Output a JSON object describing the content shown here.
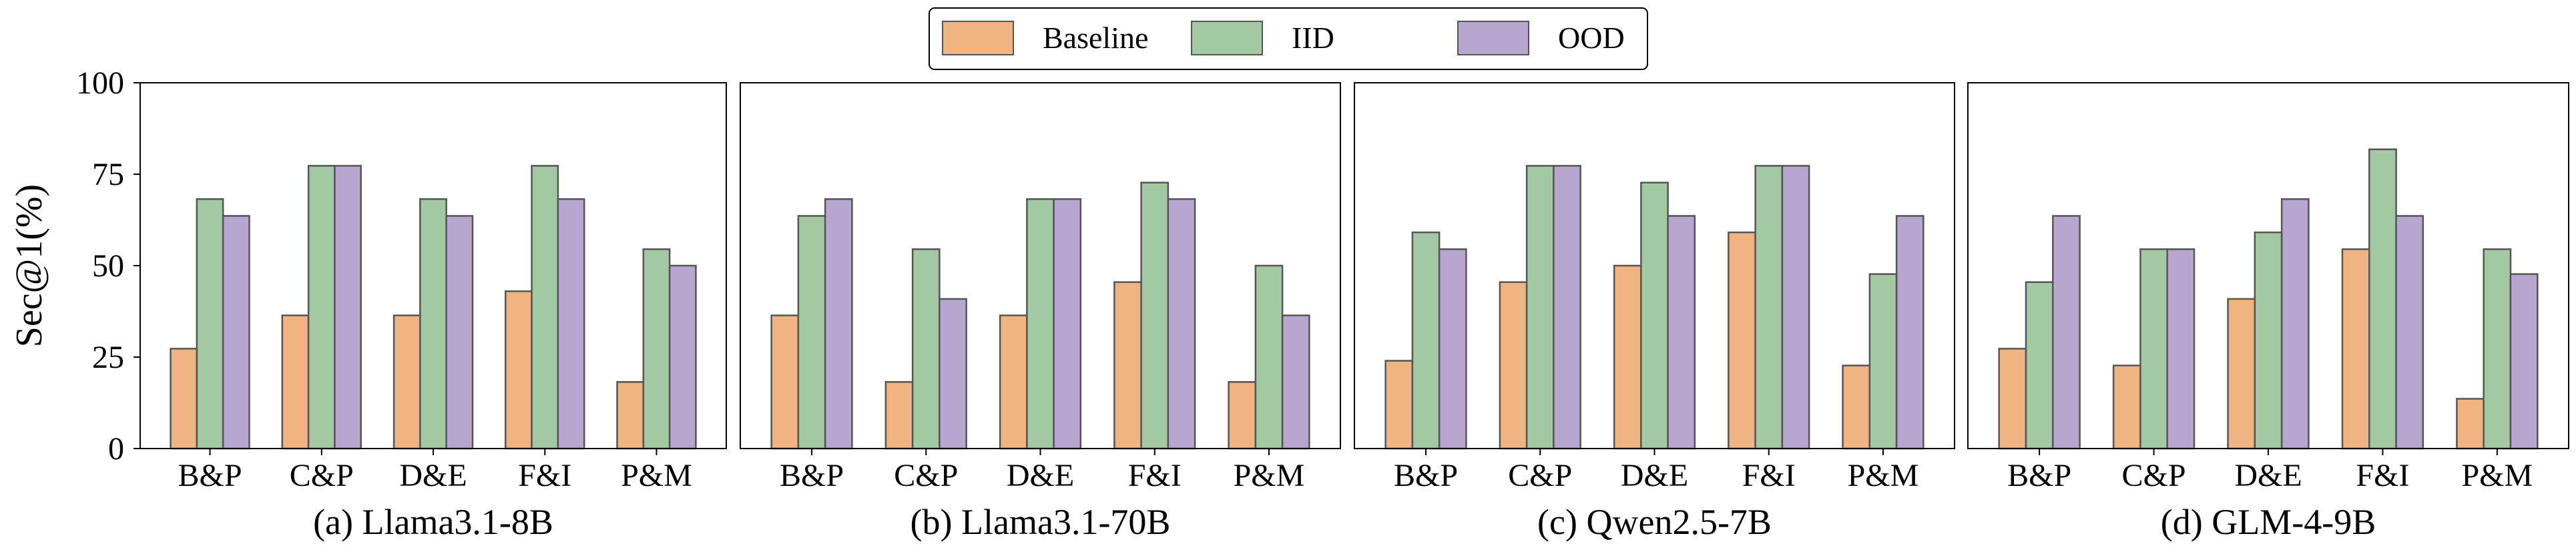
{
  "colors": {
    "baseline": "#f0b482",
    "iid": "#a3c9a3",
    "ood": "#b7a6d0",
    "bar_edge": "#555555",
    "axes": "#000000"
  },
  "legend": {
    "placement": "top-center",
    "entries": [
      "Baseline",
      "IID",
      "OOD"
    ]
  },
  "chart_data": [
    {
      "type": "bar",
      "title": "(a) Llama3.1-8B",
      "ylabel": "Sec@1(%)",
      "xlabel": "",
      "ylim": [
        0,
        100
      ],
      "yticks": [
        0,
        25,
        50,
        75,
        100
      ],
      "categories": [
        "B&P",
        "C&P",
        "D&E",
        "F&I",
        "P&M"
      ],
      "series": [
        {
          "name": "Baseline",
          "values": [
            27.3,
            36.4,
            36.4,
            43.0,
            18.2
          ]
        },
        {
          "name": "IID",
          "values": [
            68.2,
            77.3,
            68.2,
            77.3,
            54.5
          ]
        },
        {
          "name": "OOD",
          "values": [
            63.6,
            77.3,
            63.6,
            68.2,
            50.0
          ]
        }
      ]
    },
    {
      "type": "bar",
      "title": "(b) Llama3.1-70B",
      "ylim": [
        0,
        100
      ],
      "categories": [
        "B&P",
        "C&P",
        "D&E",
        "F&I",
        "P&M"
      ],
      "series": [
        {
          "name": "Baseline",
          "values": [
            36.4,
            18.2,
            36.4,
            45.5,
            18.2
          ]
        },
        {
          "name": "IID",
          "values": [
            63.6,
            54.5,
            68.2,
            72.7,
            50.0
          ]
        },
        {
          "name": "OOD",
          "values": [
            68.2,
            40.9,
            68.2,
            68.2,
            36.4
          ]
        }
      ]
    },
    {
      "type": "bar",
      "title": "(c) Qwen2.5-7B",
      "ylim": [
        0,
        100
      ],
      "categories": [
        "B&P",
        "C&P",
        "D&E",
        "F&I",
        "P&M"
      ],
      "series": [
        {
          "name": "Baseline",
          "values": [
            24.0,
            45.5,
            50.0,
            59.1,
            22.7
          ]
        },
        {
          "name": "IID",
          "values": [
            59.1,
            77.3,
            72.7,
            77.3,
            47.7
          ]
        },
        {
          "name": "OOD",
          "values": [
            54.5,
            77.3,
            63.6,
            77.3,
            63.6
          ]
        }
      ]
    },
    {
      "type": "bar",
      "title": "(d) GLM-4-9B",
      "ylim": [
        0,
        100
      ],
      "categories": [
        "B&P",
        "C&P",
        "D&E",
        "F&I",
        "P&M"
      ],
      "series": [
        {
          "name": "Baseline",
          "values": [
            27.3,
            22.7,
            40.9,
            54.5,
            13.6
          ]
        },
        {
          "name": "IID",
          "values": [
            45.5,
            54.5,
            59.1,
            81.8,
            54.5
          ]
        },
        {
          "name": "OOD",
          "values": [
            63.6,
            54.5,
            68.2,
            63.6,
            47.7
          ]
        }
      ]
    }
  ]
}
